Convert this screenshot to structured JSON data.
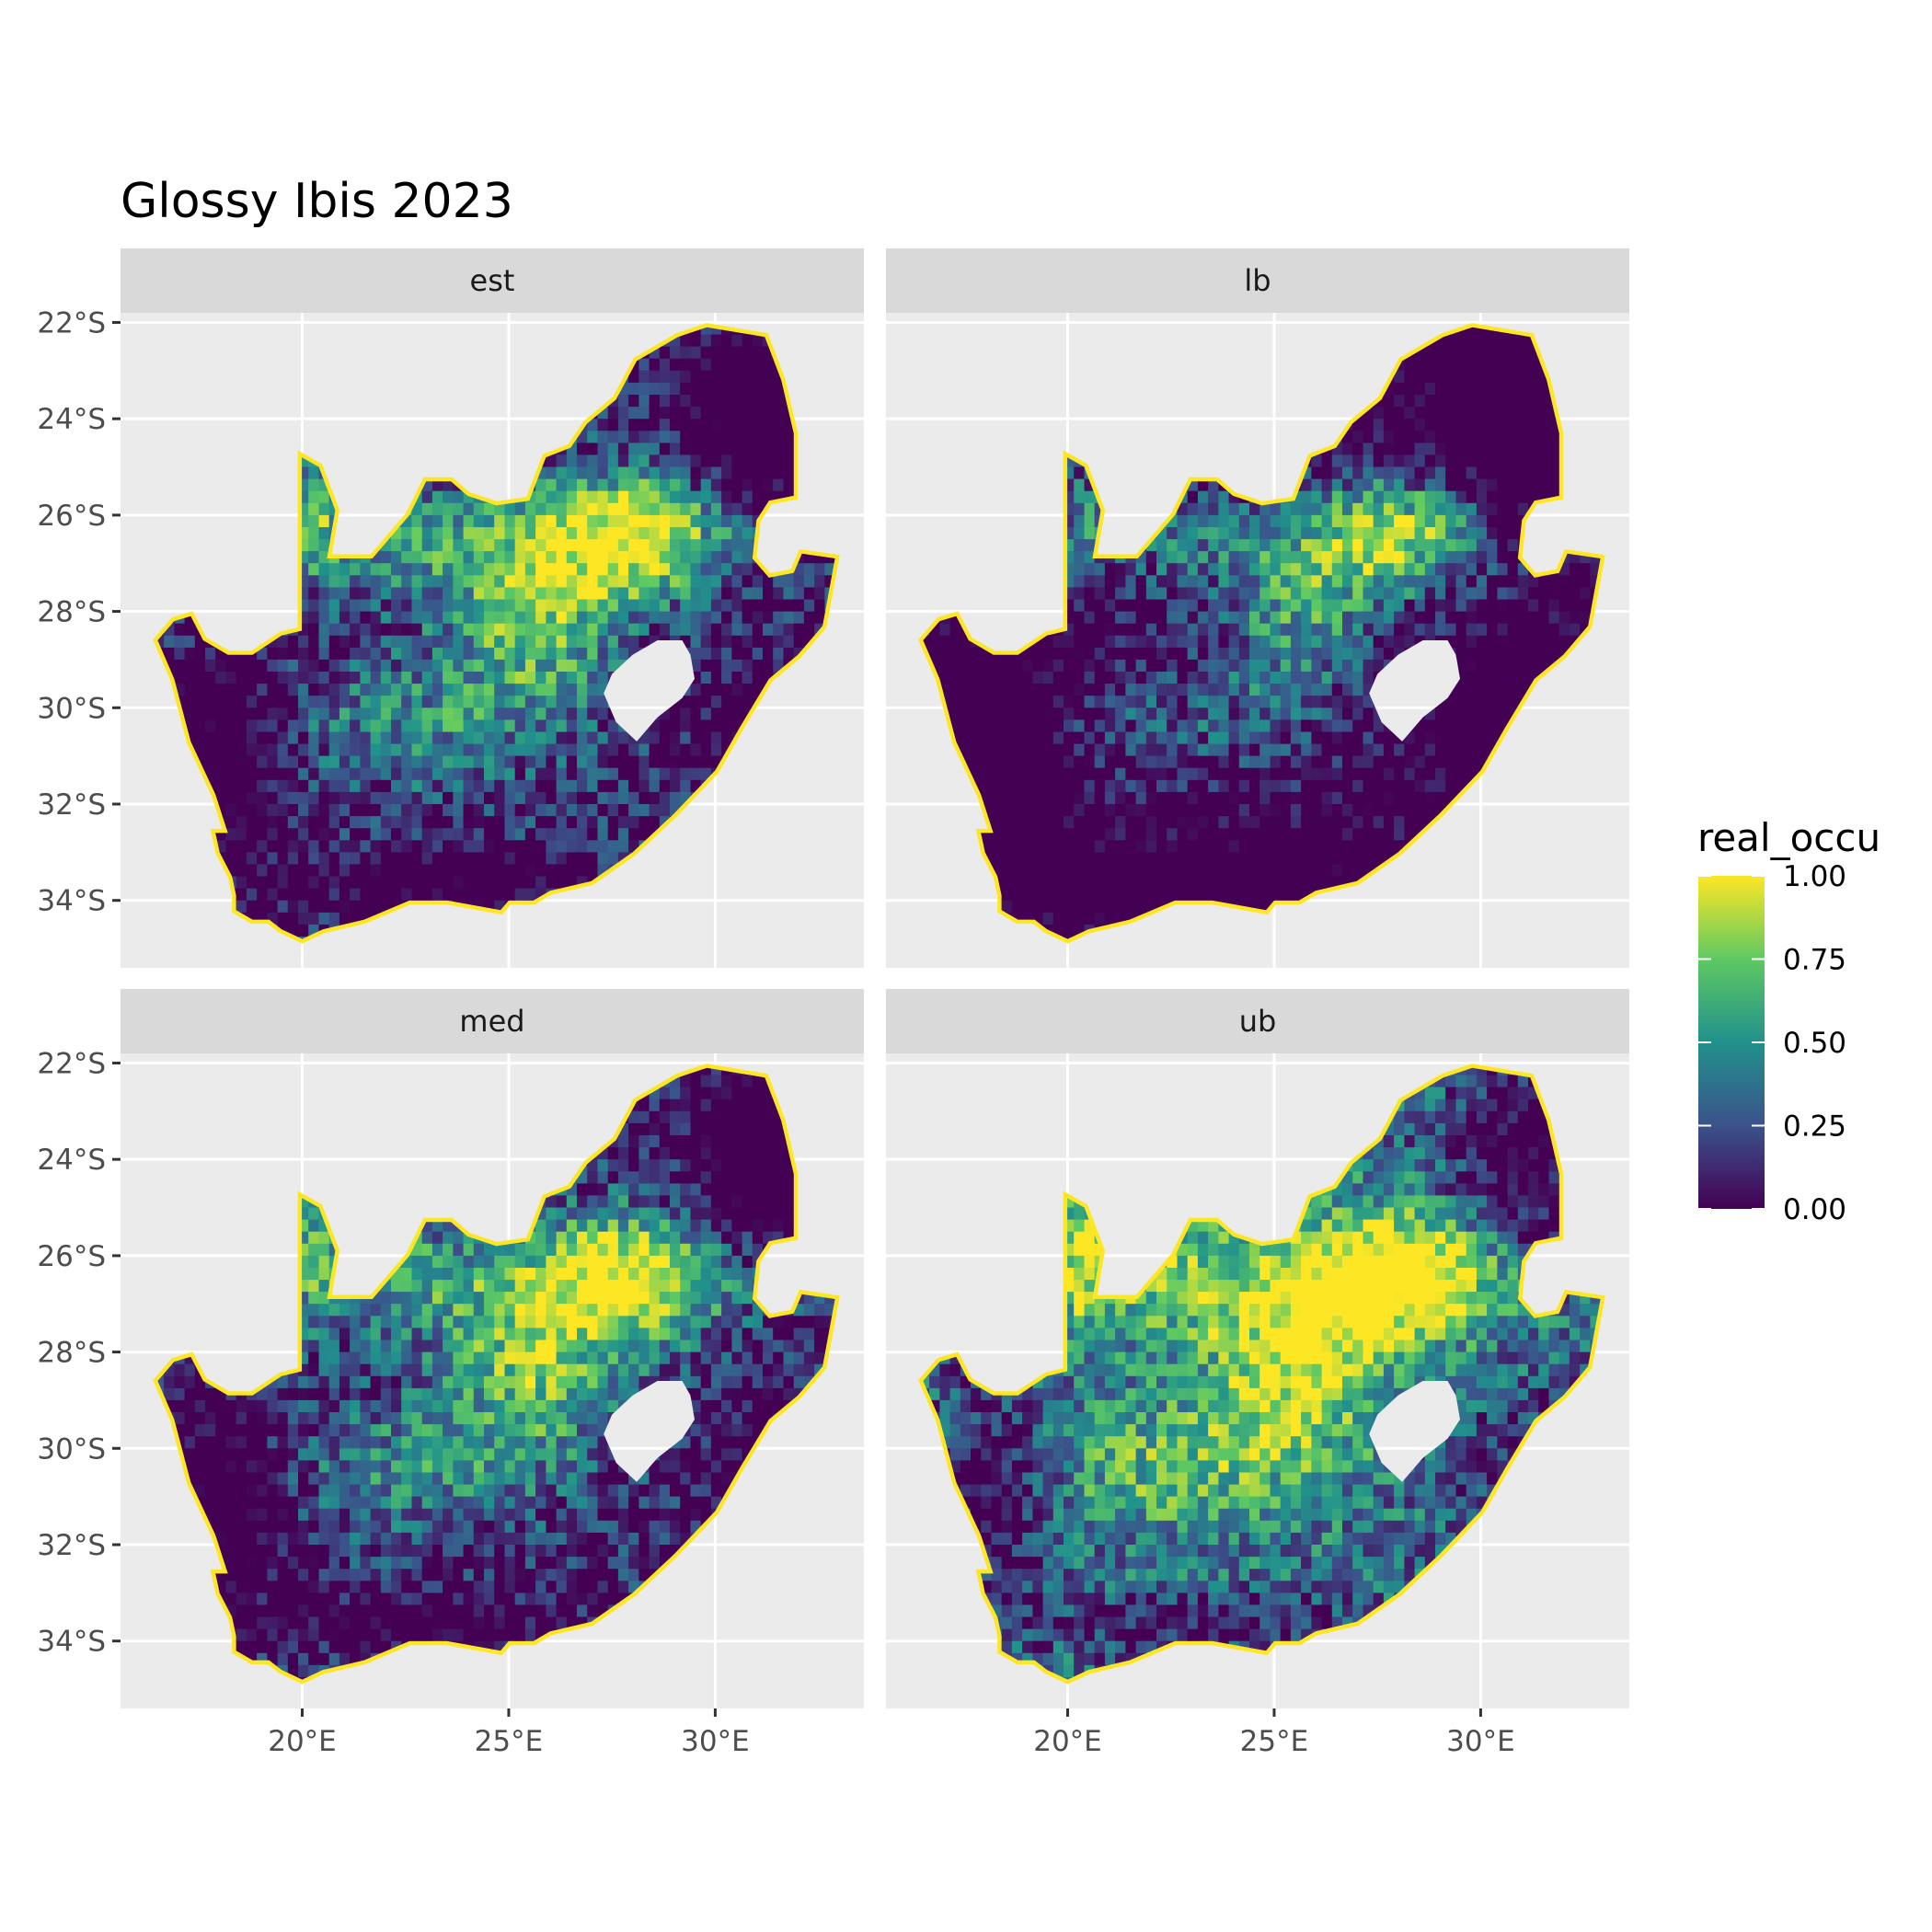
{
  "chart_data": {
    "type": "heatmap",
    "title": "Glossy Ibis 2023",
    "facets": [
      "est",
      "lb",
      "med",
      "ub"
    ],
    "x_axis": {
      "ticks": [
        20,
        25,
        30
      ],
      "tick_labels": [
        "20°E",
        "25°E",
        "30°E"
      ],
      "range": [
        15.6,
        33.6
      ]
    },
    "y_axis": {
      "ticks": [
        -22,
        -24,
        -26,
        -28,
        -30,
        -32,
        -34
      ],
      "tick_labels": [
        "22°S",
        "24°S",
        "26°S",
        "28°S",
        "30°S",
        "32°S",
        "34°S"
      ],
      "range": [
        -35.4,
        -21.8
      ]
    },
    "legend": {
      "title": "real_occu",
      "ticks": [
        1.0,
        0.75,
        0.5,
        0.25,
        0.0
      ],
      "tick_labels": [
        "1.00",
        "0.75",
        "0.50",
        "0.25",
        "0.00"
      ],
      "range": [
        0,
        1
      ],
      "placement": "right"
    },
    "colorscale": "viridis",
    "colors": {
      "panel_bg": "#ebebeb",
      "strip_bg": "#d9d9d9",
      "grid": "#ffffff",
      "viridis_stops": [
        "#440154",
        "#3b528b",
        "#21918c",
        "#5ec962",
        "#fde725"
      ]
    }
  }
}
